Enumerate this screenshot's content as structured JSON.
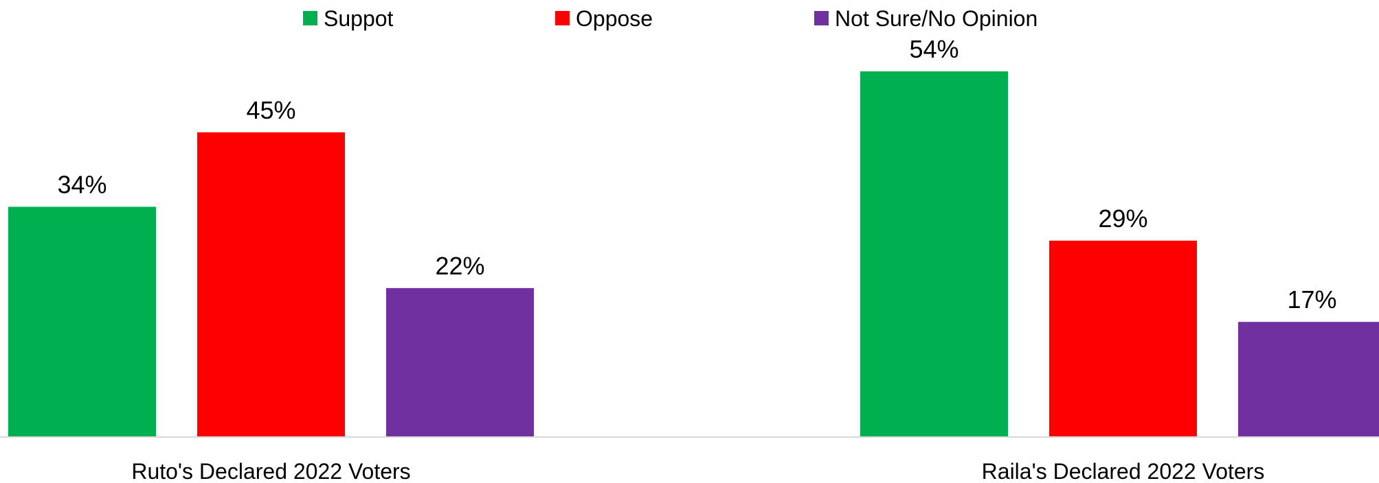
{
  "chart_data": {
    "type": "bar",
    "categories": [
      "Ruto's Declared 2022 Voters",
      "Raila's Declared 2022 Voters"
    ],
    "series": [
      {
        "name": "Suppot",
        "color": "#00b050",
        "values": [
          34,
          54
        ]
      },
      {
        "name": "Oppose",
        "color": "#ff0000",
        "values": [
          45,
          29
        ]
      },
      {
        "name": "Not Sure/No Opinion",
        "color": "#7030a0",
        "values": [
          22,
          17
        ]
      }
    ],
    "value_suffix": "%",
    "ylim": [
      0,
      60
    ],
    "legend_position": "top",
    "grid": false,
    "title": "",
    "xlabel": "",
    "ylabel": ""
  }
}
